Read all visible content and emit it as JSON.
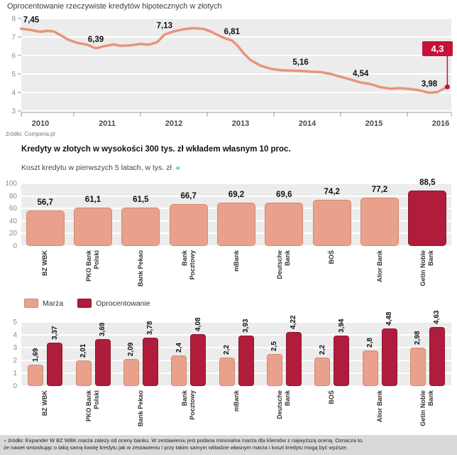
{
  "colors": {
    "salmon": "#e9a18b",
    "salmon_border": "#d08a72",
    "dark_red": "#b01d3c",
    "dark_red_border": "#8d1630",
    "line": "#e8947c",
    "badge": "#c5123a",
    "plot_bg": "#ececec",
    "grid": "#ffffff",
    "axis_text": "#8a8a8a",
    "footer_bg": "#d9d9d9",
    "accent_teal": "#2aa3a8"
  },
  "chart_data": [
    {
      "type": "line",
      "title": "Oprocentowanie rzeczywiste kredytów hipotecznych w złotych",
      "source": "źródło: Comperia.pl",
      "ylim": [
        3,
        8
      ],
      "yticks": [
        8,
        7,
        6,
        5,
        4,
        3
      ],
      "xticks": [
        "2010",
        "2011",
        "2012",
        "2013",
        "2014",
        "2015",
        "2016"
      ],
      "points": [
        [
          2009.71,
          7.45
        ],
        [
          2009.85,
          7.38
        ],
        [
          2010.0,
          7.28
        ],
        [
          2010.1,
          7.33
        ],
        [
          2010.2,
          7.3
        ],
        [
          2010.3,
          7.1
        ],
        [
          2010.42,
          6.85
        ],
        [
          2010.55,
          6.68
        ],
        [
          2010.7,
          6.58
        ],
        [
          2010.83,
          6.39
        ],
        [
          2010.95,
          6.5
        ],
        [
          2011.1,
          6.6
        ],
        [
          2011.2,
          6.52
        ],
        [
          2011.35,
          6.55
        ],
        [
          2011.5,
          6.62
        ],
        [
          2011.62,
          6.58
        ],
        [
          2011.75,
          6.72
        ],
        [
          2011.86,
          7.13
        ],
        [
          2012.0,
          7.3
        ],
        [
          2012.15,
          7.42
        ],
        [
          2012.3,
          7.48
        ],
        [
          2012.45,
          7.43
        ],
        [
          2012.55,
          7.3
        ],
        [
          2012.65,
          7.12
        ],
        [
          2012.75,
          6.95
        ],
        [
          2012.87,
          6.81
        ],
        [
          2012.95,
          6.55
        ],
        [
          2013.05,
          6.1
        ],
        [
          2013.15,
          5.75
        ],
        [
          2013.3,
          5.45
        ],
        [
          2013.45,
          5.28
        ],
        [
          2013.6,
          5.2
        ],
        [
          2013.75,
          5.18
        ],
        [
          2013.9,
          5.16
        ],
        [
          2014.05,
          5.12
        ],
        [
          2014.2,
          5.1
        ],
        [
          2014.35,
          5.0
        ],
        [
          2014.5,
          4.85
        ],
        [
          2014.65,
          4.7
        ],
        [
          2014.8,
          4.54
        ],
        [
          2014.95,
          4.45
        ],
        [
          2015.1,
          4.28
        ],
        [
          2015.25,
          4.2
        ],
        [
          2015.4,
          4.23
        ],
        [
          2015.55,
          4.18
        ],
        [
          2015.7,
          4.1
        ],
        [
          2015.83,
          3.98
        ],
        [
          2015.95,
          4.02
        ],
        [
          2016.1,
          4.3
        ]
      ],
      "annotations": [
        {
          "x": 2009.75,
          "y": 7.45,
          "label": "7,45"
        },
        {
          "x": 2010.83,
          "y": 6.39,
          "label": "6,39"
        },
        {
          "x": 2011.86,
          "y": 7.13,
          "label": "7,13"
        },
        {
          "x": 2012.87,
          "y": 6.81,
          "label": "6,81"
        },
        {
          "x": 2013.9,
          "y": 5.16,
          "label": "5,16"
        },
        {
          "x": 2014.8,
          "y": 4.54,
          "label": "4,54"
        },
        {
          "x": 2015.83,
          "y": 3.98,
          "label": "3,98"
        }
      ],
      "endpoint": {
        "x": 2016.1,
        "y": 4.3,
        "label": "4,3"
      }
    },
    {
      "type": "bar",
      "title": "Kredyty w złotych w wysokości 300 tys. zł wkładem własnym 10 proc.",
      "subtitle": "Koszt kredytu w pierwszych 5 latach, w tys. zł",
      "categories": [
        "BZ WBK",
        "PKO Bank\nPolski",
        "Bank Pekao",
        "Bank\nPocztowy",
        "mBank",
        "Deutsche\nBank",
        "BOŚ",
        "Alior Bank",
        "Getin Noble\nBank"
      ],
      "values": [
        56.7,
        61.1,
        61.5,
        66.7,
        69.2,
        69.6,
        74.2,
        77.2,
        88.5
      ],
      "value_labels": [
        "56,7",
        "61,1",
        "61,5",
        "66,7",
        "69,2",
        "69,6",
        "74,2",
        "77,2",
        "88,5"
      ],
      "ylim": [
        0,
        100
      ],
      "yticks": [
        100,
        80,
        60,
        40,
        20,
        0
      ],
      "highlight_index": 8
    },
    {
      "type": "grouped_bar",
      "categories": [
        "BZ WBK",
        "PKO Bank\nPolski",
        "Bank Pekao",
        "Bank\nPocztowy",
        "mBank",
        "Deutsche\nBank",
        "BOŚ",
        "Alior Bank",
        "Getin Noble\nBank"
      ],
      "series": [
        {
          "name": "Marża",
          "color_key": "salmon",
          "values": [
            1.69,
            2.01,
            2.09,
            2.4,
            2.2,
            2.5,
            2.2,
            2.8,
            2.98
          ],
          "labels": [
            "1,69",
            "2,01",
            "2,09",
            "2,4",
            "2,2",
            "2,5",
            "2,2",
            "2,8",
            "2,98"
          ]
        },
        {
          "name": "Oprocentowanie",
          "color_key": "dark_red",
          "values": [
            3.37,
            3.69,
            3.78,
            4.08,
            3.93,
            4.22,
            3.94,
            4.48,
            4.63
          ],
          "labels": [
            "3,37",
            "3,69",
            "3,78",
            "4,08",
            "3,93",
            "4,22",
            "3,94",
            "4,48",
            "4,63"
          ]
        }
      ],
      "ylim": [
        0,
        5
      ],
      "yticks": [
        5,
        4,
        3,
        2,
        1,
        0
      ]
    }
  ],
  "legend": {
    "items": [
      {
        "label": "Marża",
        "color_key": "salmon"
      },
      {
        "label": "Oprocentowanie",
        "color_key": "dark_red"
      }
    ]
  },
  "subtitle_icon": "«",
  "footer": {
    "icon": "»",
    "line1": "źródło: Expander W BZ WBK marża zależy od oceny banku. W zestawieniu jest podana minimalna marża dla klientów z najwyższą oceną. Oznacza to,",
    "line2": "że nawet wnioskując o taką samą kwotę kredytu jak w zestawieniu i przy takim samym wkładzie własnym marża i koszt kredytu mogą być wyższe."
  }
}
